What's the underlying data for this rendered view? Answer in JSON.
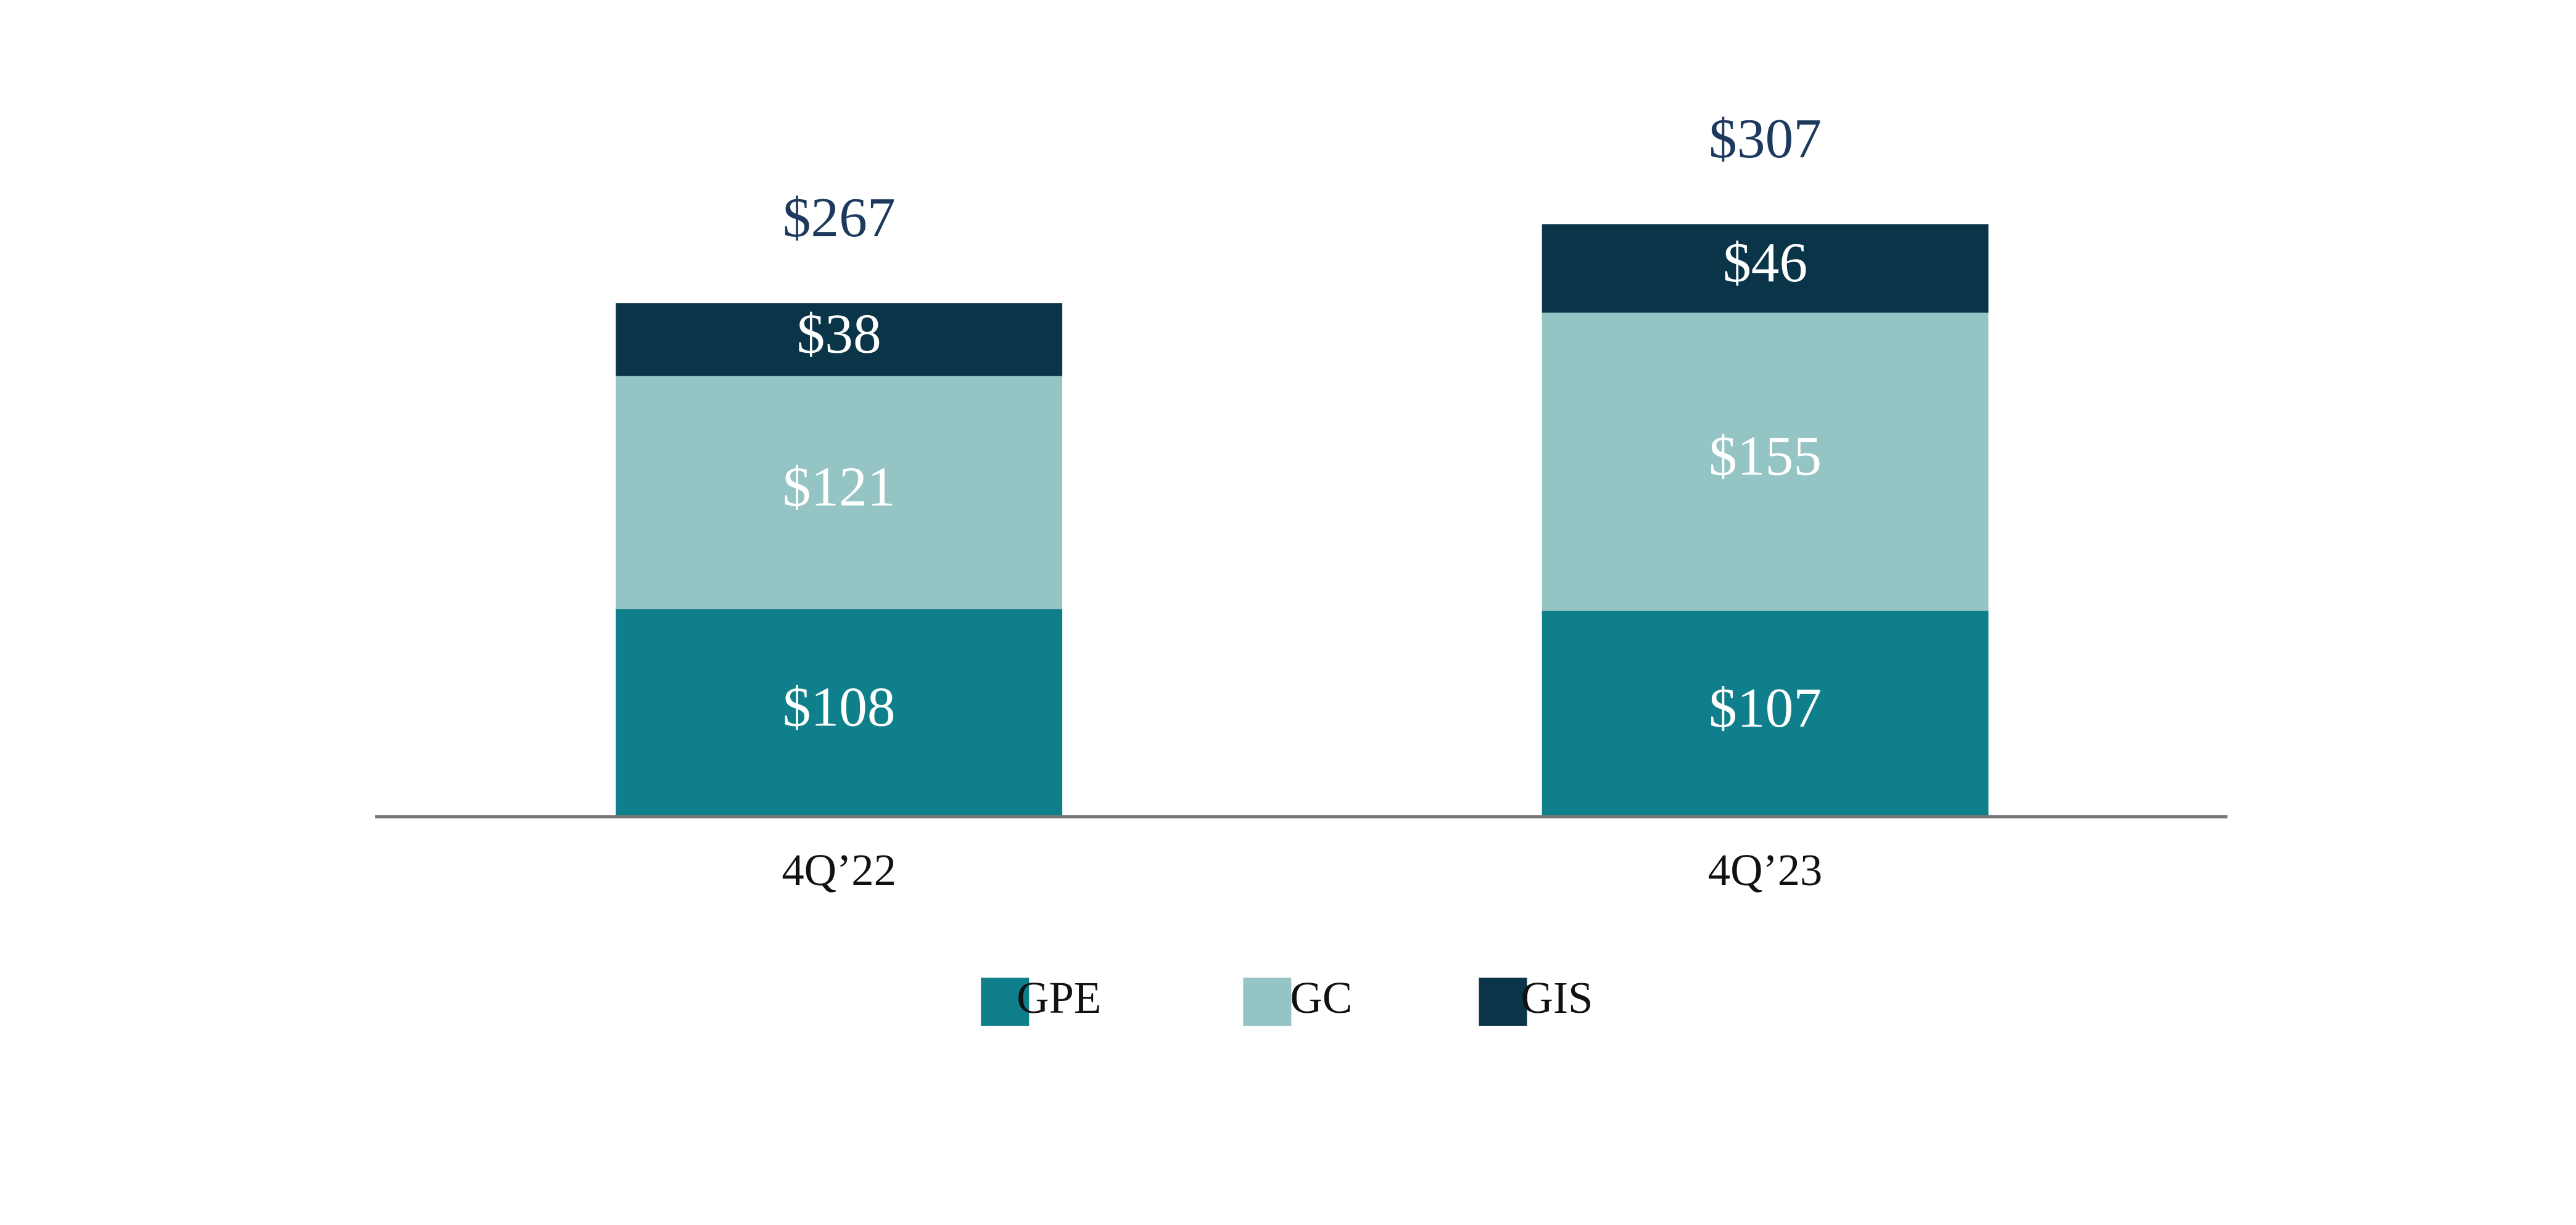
{
  "chart_data": {
    "type": "stacked_bar",
    "categories": [
      "4Q’22",
      "4Q’23"
    ],
    "series": [
      {
        "name": "GPE",
        "color": "#0e7f8b",
        "values": [
          108,
          107
        ],
        "value_labels": [
          "$108",
          "$107"
        ]
      },
      {
        "name": "GC",
        "color": "#95c4c5",
        "values": [
          121,
          155
        ],
        "value_labels": [
          "$121",
          "$155"
        ]
      },
      {
        "name": "GIS",
        "color": "#0a3549",
        "values": [
          38,
          46
        ],
        "value_labels": [
          "$38",
          "$46"
        ]
      }
    ],
    "totals": [
      267,
      307
    ],
    "total_labels": [
      "$267",
      "$307"
    ]
  }
}
